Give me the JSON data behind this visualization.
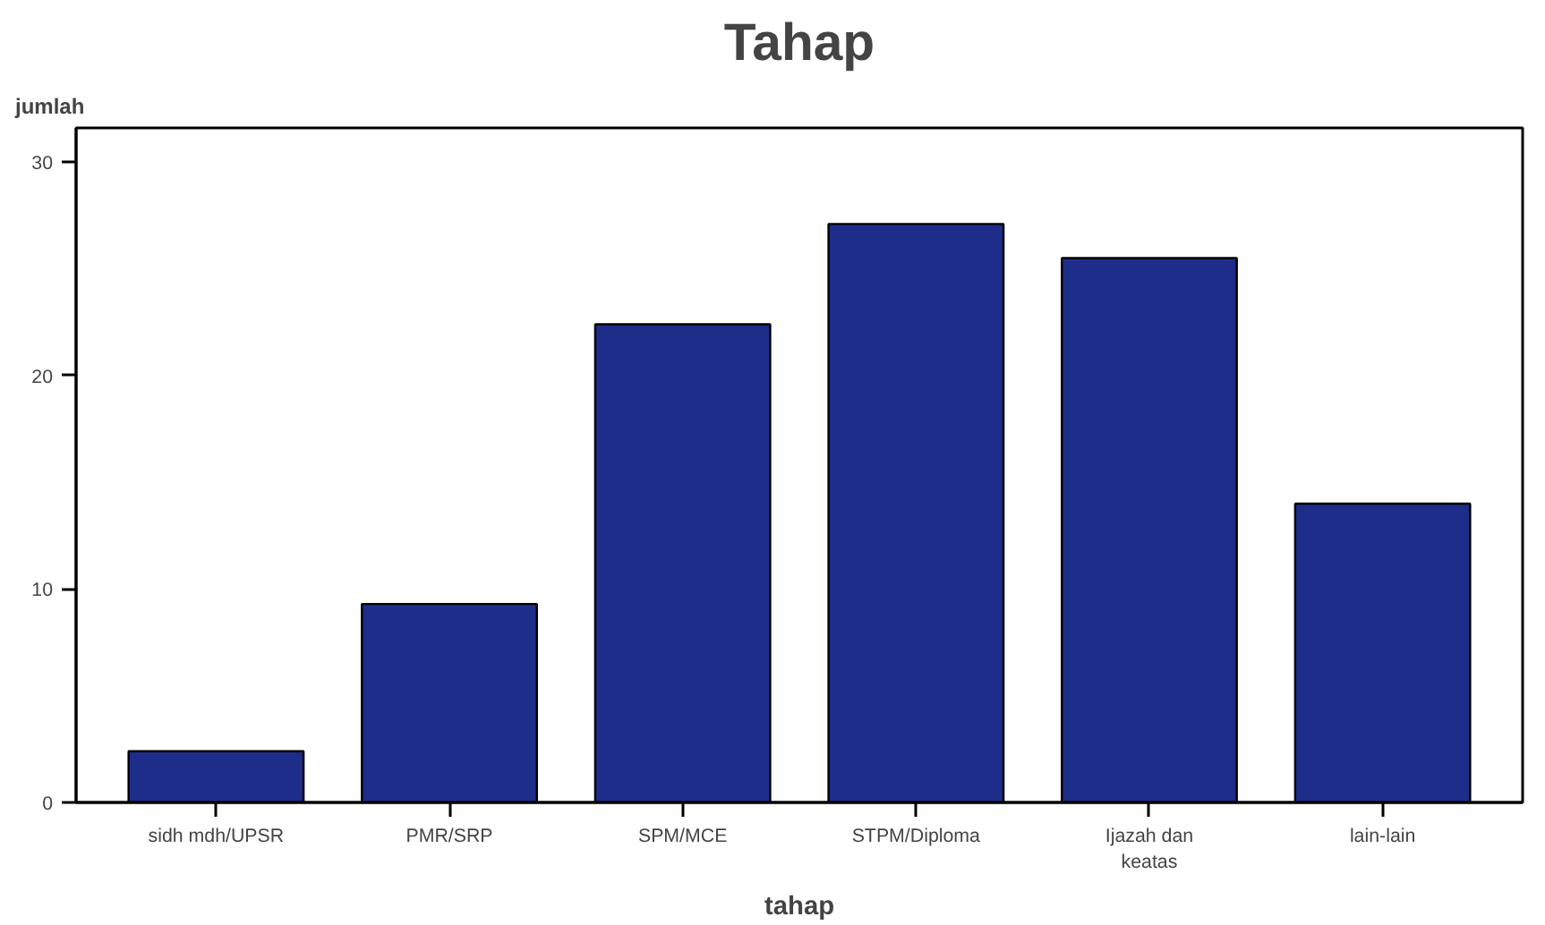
{
  "chart_data": {
    "type": "bar",
    "title": "Tahap",
    "xlabel": "tahap",
    "ylabel": "jumlah",
    "categories": [
      "sidh mdh/UPSR",
      "PMR/SRP",
      "SPM/MCE",
      "STPM/Diploma",
      "Ijazah dan keatas",
      "lain-lain"
    ],
    "values": [
      2.4,
      9.3,
      22.4,
      27.1,
      25.5,
      14.0
    ],
    "color": "#1f2d8a",
    "ylim": [
      0,
      31.6
    ],
    "yticks": [
      0,
      10,
      20,
      30
    ],
    "grid": false
  }
}
